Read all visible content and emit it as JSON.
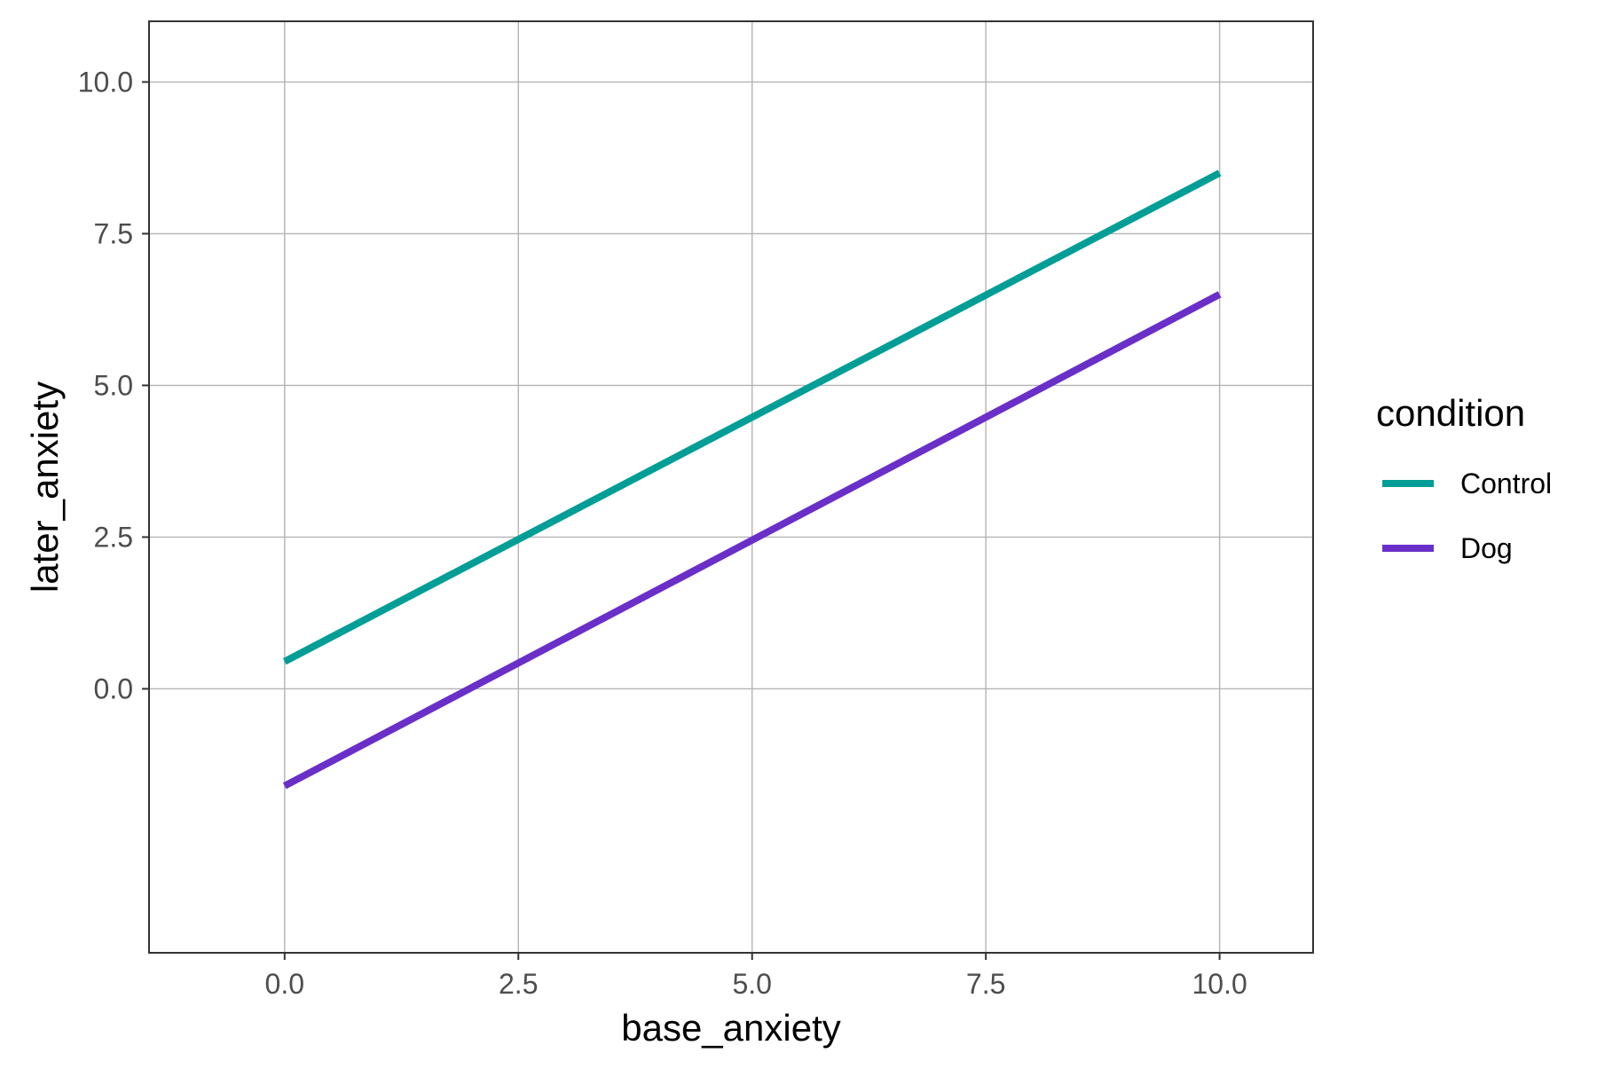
{
  "chart_data": {
    "type": "line",
    "title": "",
    "xlabel": "base_anxiety",
    "ylabel": "later_anxiety",
    "xlim": [
      -1.45,
      11.0
    ],
    "ylim": [
      -4.35,
      11.0
    ],
    "x_ticks": [
      0.0,
      2.5,
      5.0,
      7.5,
      10.0
    ],
    "x_tick_labels": [
      "0.0",
      "2.5",
      "5.0",
      "7.5",
      "10.0"
    ],
    "y_ticks": [
      0.0,
      2.5,
      5.0,
      7.5,
      10.0
    ],
    "y_tick_labels": [
      "0.0",
      "2.5",
      "5.0",
      "7.5",
      "10.0"
    ],
    "grid": true,
    "legend": {
      "title": "condition",
      "position": "right"
    },
    "series": [
      {
        "name": "Control",
        "color": "#009e96",
        "x": [
          0,
          10
        ],
        "y": [
          0.45,
          8.5
        ]
      },
      {
        "name": "Dog",
        "color": "#6a2fc8",
        "x": [
          0,
          10
        ],
        "y": [
          -1.6,
          6.5
        ]
      }
    ]
  }
}
